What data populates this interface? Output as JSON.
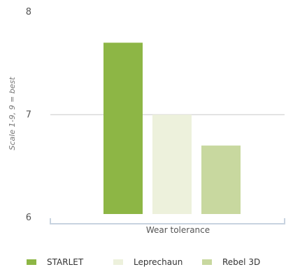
{
  "chart_data": {
    "type": "bar",
    "ylabel": "Scale 1-9, 9 = best",
    "xlabel": "",
    "ylim": [
      6,
      8
    ],
    "yticks": [
      6,
      7,
      8
    ],
    "grid": true,
    "legend_position": "bottom",
    "categories": [
      "Wear tolerance"
    ],
    "series": [
      {
        "name": "STARLET",
        "values": [
          7.7
        ],
        "color": "#8db645"
      },
      {
        "name": "Leprechaun",
        "values": [
          7.0
        ],
        "color": "#edf1dc"
      },
      {
        "name": "Rebel 3D",
        "values": [
          6.7
        ],
        "color": "#c8d89f"
      }
    ]
  }
}
